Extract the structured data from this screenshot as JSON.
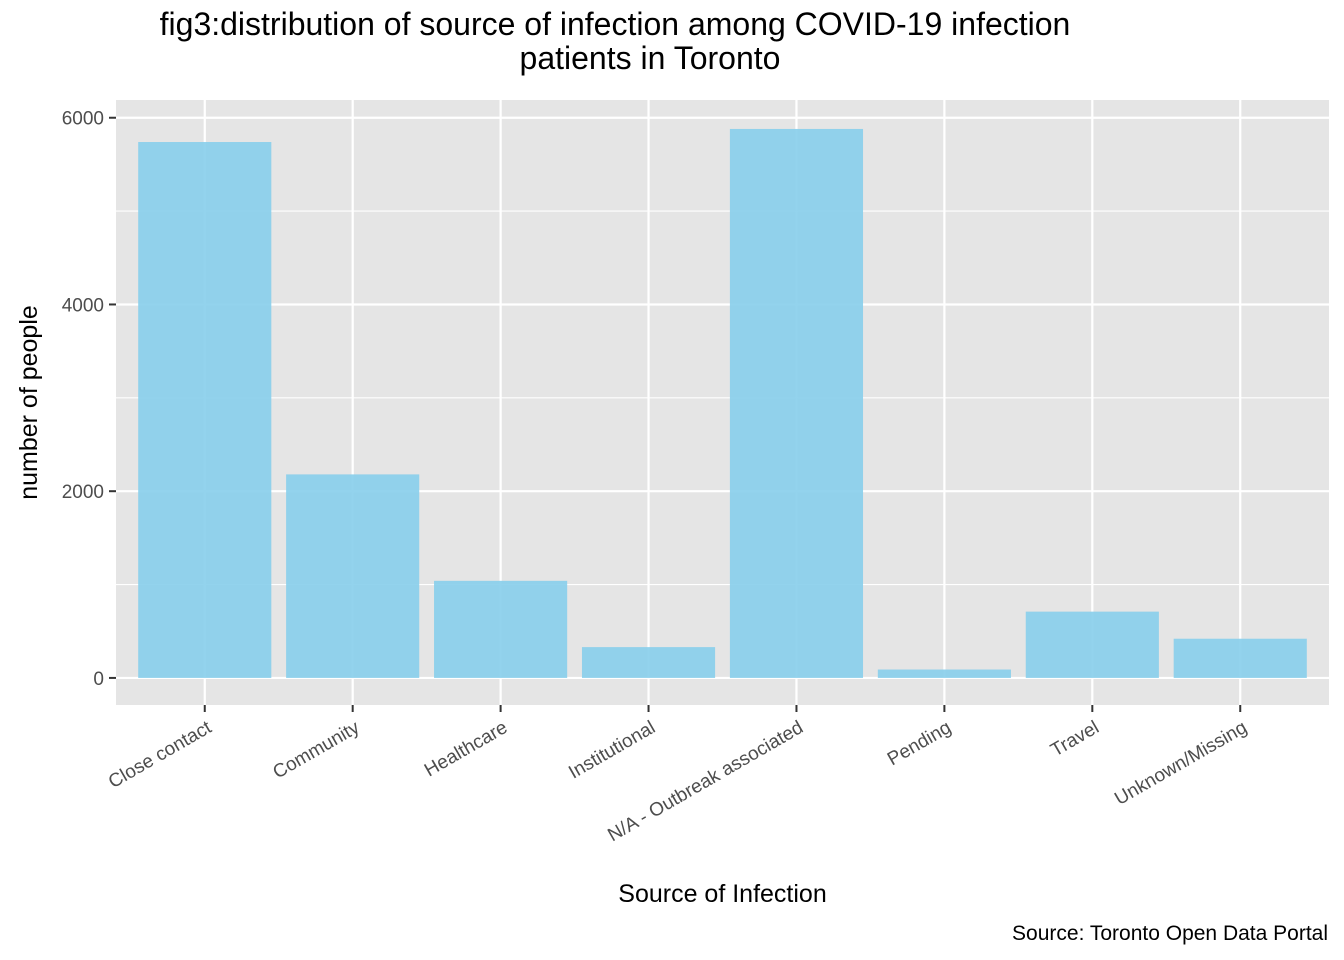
{
  "chart_data": {
    "type": "bar",
    "title_line1": "fig3:distribution of source of infection among COVID-19 infection",
    "title_line2": "patients in Toronto",
    "xlabel": "Source of Infection",
    "ylabel": "number of people",
    "caption": "Source: Toronto Open Data Portal",
    "categories": [
      "Close contact",
      "Community",
      "Healthcare",
      "Institutional",
      "N/A - Outbreak associated",
      "Pending",
      "Travel",
      "Unknown/Missing"
    ],
    "values": [
      5740,
      2180,
      1040,
      330,
      5880,
      90,
      710,
      420
    ],
    "ylim": [
      -290,
      6190
    ],
    "yticks": [
      0,
      2000,
      4000,
      6000
    ],
    "ytick_labels": [
      "0",
      "2000",
      "4000",
      "6000"
    ],
    "colors": {
      "bar": "#87CEEB",
      "panel": "#E5E5E5",
      "grid": "#FFFFFF",
      "tick_text": "#4D4D4D"
    },
    "grid": true,
    "legend": "none"
  }
}
